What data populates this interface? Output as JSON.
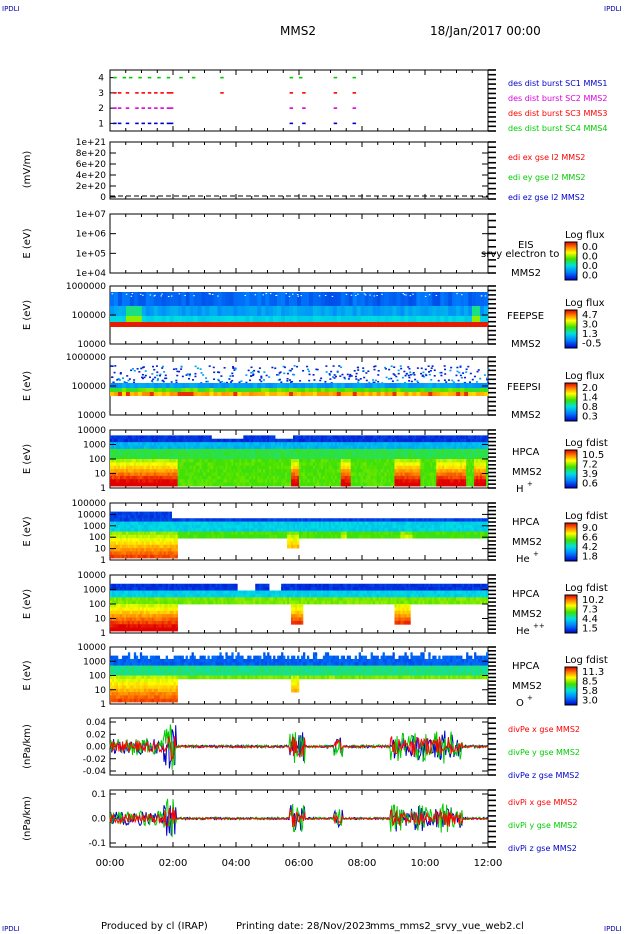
{
  "header": {
    "corner_label": "IPDLI",
    "spacecraft": "MMS2",
    "date": "18/Jan/2017 00:00"
  },
  "footer": {
    "produced_by": "Produced by cl (IRAP)",
    "printing_date": "Printing date: 28/Nov/2023",
    "filename": "mms_mms2_srvy_vue_web2.cl"
  },
  "time_axis": {
    "tick_labels": [
      "00:00",
      "02:00",
      "04:00",
      "06:00",
      "08:00",
      "10:00",
      "12:00"
    ],
    "range_hours": [
      0,
      12
    ]
  },
  "colors": {
    "red": "#ff0000",
    "magenta": "#dd00dd",
    "green": "#00cc00",
    "blue": "#0000cc"
  },
  "chart_data": [
    {
      "type": "scatter",
      "panel": "burst",
      "ylim": [
        0.5,
        4.5
      ],
      "ytick_labels": [
        "4",
        "3",
        "2",
        "1"
      ],
      "series": [
        {
          "name": "des dist burst SC1 MMS1",
          "color": "#0000cc",
          "y": 1,
          "x_hours": [
            0.1,
            0.25,
            0.5,
            0.8,
            1.0,
            1.2,
            1.4,
            1.6,
            1.8,
            1.9,
            5.7,
            6.1,
            7.1,
            7.7
          ]
        },
        {
          "name": "des dist burst SC2 MMS2",
          "color": "#dd00dd",
          "y": 2,
          "x_hours": [
            0.1,
            0.25,
            0.5,
            0.8,
            1.0,
            1.2,
            1.4,
            1.6,
            1.8,
            1.9,
            5.7,
            6.1,
            7.1,
            7.7
          ]
        },
        {
          "name": "des dist burst SC3 MMS3",
          "color": "#ff0000",
          "y": 3,
          "x_hours": [
            0.1,
            0.25,
            0.5,
            0.8,
            1.0,
            1.2,
            1.4,
            1.6,
            1.8,
            1.9,
            3.5,
            5.7,
            6.1,
            7.1,
            7.7
          ]
        },
        {
          "name": "des dist burst SC4 MMS4",
          "color": "#00cc00",
          "y": 4,
          "x_hours": [
            0.1,
            0.4,
            0.6,
            0.9,
            1.2,
            1.5,
            1.8,
            2.2,
            2.6,
            3.5,
            5.7,
            6.0,
            7.1,
            7.7
          ]
        }
      ]
    },
    {
      "type": "line",
      "panel": "edi",
      "ylabel": "(mV/m)",
      "ytick_labels": [
        "1e+21",
        "8e+20",
        "6e+20",
        "4e+20",
        "2e+20",
        "0"
      ],
      "ylim": [
        0,
        1e+21
      ],
      "series": [
        {
          "name": "edi ex gse l2 MMS2",
          "color": "#ff0000"
        },
        {
          "name": "edi ey gse l2 MMS2",
          "color": "#00cc00"
        },
        {
          "name": "edi ez gse l2 MMS2",
          "color": "#0000cc"
        }
      ]
    },
    {
      "type": "heatmap",
      "panel": "eis",
      "ylabel": "E (eV)",
      "ytick_labels": [
        "1e+07",
        "1e+06",
        "1e+05",
        "1e+04"
      ],
      "labels": [
        "EIS",
        "MMS2"
      ],
      "overlay_text": "srvy electron to",
      "colorbar": {
        "title": "Log flux",
        "ticks": [
          "0.0",
          "0.0",
          "0.0",
          "0.0"
        ]
      }
    },
    {
      "type": "heatmap",
      "panel": "feeps_e",
      "ylabel": "E (eV)",
      "ytick_labels": [
        "1000000",
        "100000",
        "10000"
      ],
      "labels": [
        "FEEPSE",
        "MMS2"
      ],
      "colorbar": {
        "title": "Log flux",
        "ticks": [
          "4.7",
          "3.0",
          "1.3",
          "-0.5"
        ]
      }
    },
    {
      "type": "heatmap",
      "panel": "feeps_i",
      "ylabel": "E (eV)",
      "ytick_labels": [
        "1000000",
        "100000",
        "10000"
      ],
      "labels": [
        "FEEPSI",
        "MMS2"
      ],
      "colorbar": {
        "title": "Log flux",
        "ticks": [
          "2.0",
          "1.4",
          "0.8",
          "0.3"
        ]
      }
    },
    {
      "type": "heatmap",
      "panel": "hpca_h",
      "ylabel": "E (eV)",
      "ytick_labels": [
        "10000",
        "1000",
        "100",
        "10",
        "1"
      ],
      "labels": [
        "HPCA",
        "MMS2",
        "H",
        "+"
      ],
      "colorbar": {
        "title": "Log fdist",
        "ticks": [
          "10.5",
          "7.2",
          "3.9",
          "0.6"
        ]
      }
    },
    {
      "type": "heatmap",
      "panel": "hpca_he",
      "ylabel": "E (eV)",
      "ytick_labels": [
        "100000",
        "10000",
        "1000",
        "100",
        "10",
        "1"
      ],
      "labels": [
        "HPCA",
        "MMS2",
        "He",
        "+"
      ],
      "colorbar": {
        "title": "Log fdist",
        "ticks": [
          "9.0",
          "6.6",
          "4.2",
          "1.8"
        ]
      }
    },
    {
      "type": "heatmap",
      "panel": "hpca_hepp",
      "ylabel": "E (eV)",
      "ytick_labels": [
        "10000",
        "1000",
        "100",
        "10",
        "1"
      ],
      "labels": [
        "HPCA",
        "MMS2",
        "He",
        "++"
      ],
      "colorbar": {
        "title": "Log fdist",
        "ticks": [
          "10.2",
          "7.3",
          "4.4",
          "1.5"
        ]
      }
    },
    {
      "type": "heatmap",
      "panel": "hpca_o",
      "ylabel": "E (eV)",
      "ytick_labels": [
        "10000",
        "1000",
        "100",
        "10",
        "1"
      ],
      "labels": [
        "HPCA",
        "MMS2",
        "O",
        "+"
      ],
      "colorbar": {
        "title": "Log fdist",
        "ticks": [
          "11.3",
          "8.5",
          "5.8",
          "3.0"
        ]
      }
    },
    {
      "type": "line",
      "panel": "divpe",
      "ylabel": "(nPa/km)",
      "ytick_labels": [
        "0.04",
        "0.02",
        "0.00",
        "-0.02",
        "-0.04"
      ],
      "ylim": [
        -0.045,
        0.045
      ],
      "series": [
        {
          "name": "divPe x gse MMS2",
          "color": "#ff0000"
        },
        {
          "name": "divPe y gse MMS2",
          "color": "#00cc00"
        },
        {
          "name": "divPe z gse MMS2",
          "color": "#0000cc"
        }
      ]
    },
    {
      "type": "line",
      "panel": "divpi",
      "ylabel": "(nPa/km)",
      "ytick_labels": [
        "0.1",
        "0.0",
        "-0.1"
      ],
      "ylim": [
        -0.15,
        0.15
      ],
      "series": [
        {
          "name": "divPi x gse MMS2",
          "color": "#ff0000"
        },
        {
          "name": "divPi y gse MMS2",
          "color": "#00cc00"
        },
        {
          "name": "divPi z gse MMS2",
          "color": "#0000cc"
        }
      ]
    }
  ]
}
